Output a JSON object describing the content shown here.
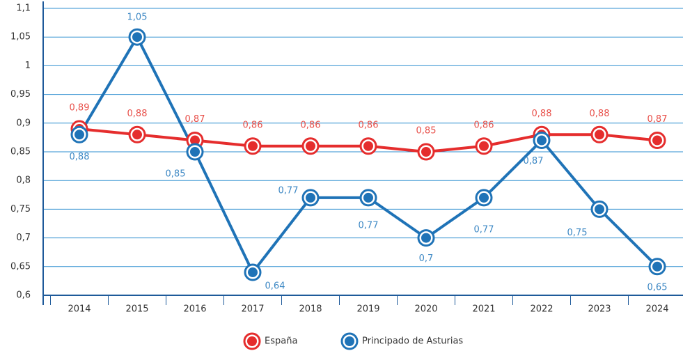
{
  "chart_data": {
    "type": "line",
    "categories": [
      "2014",
      "2015",
      "2016",
      "2017",
      "2018",
      "2019",
      "2020",
      "2021",
      "2022",
      "2023",
      "2024"
    ],
    "series": [
      {
        "name": "España",
        "color": "#e52d2d",
        "values": [
          0.89,
          0.88,
          0.87,
          0.86,
          0.86,
          0.86,
          0.85,
          0.86,
          0.88,
          0.88,
          0.87
        ],
        "value_labels": [
          "0,89",
          "0,88",
          "0,87",
          "0,86",
          "0,86",
          "0,86",
          "0,85",
          "0,86",
          "0,88",
          "0,88",
          "0,87"
        ]
      },
      {
        "name": "Principado de Asturias",
        "color": "#1f73b7",
        "values": [
          0.88,
          1.05,
          0.85,
          0.64,
          0.77,
          0.77,
          0.7,
          0.77,
          0.87,
          0.75,
          0.65
        ],
        "value_labels": [
          "0,88",
          "1,05",
          "0,85",
          "0,64",
          "0,77",
          "0,77",
          "0,7",
          "0,77",
          "0,87",
          "0,75",
          "0,65"
        ]
      }
    ],
    "ylim": [
      0.6,
      1.1
    ],
    "yticks": [
      {
        "value": 0.6,
        "label": "0,6"
      },
      {
        "value": 0.65,
        "label": "0,65"
      },
      {
        "value": 0.7,
        "label": "0,7"
      },
      {
        "value": 0.75,
        "label": "0,75"
      },
      {
        "value": 0.8,
        "label": "0,8"
      },
      {
        "value": 0.85,
        "label": "0,85"
      },
      {
        "value": 0.9,
        "label": "0,9"
      },
      {
        "value": 0.95,
        "label": "0,95"
      },
      1,
      {
        "value": 1.05,
        "label": "1,05"
      },
      {
        "value": 1.1,
        "label": "1,1"
      }
    ],
    "grid": true,
    "legend": "bottom"
  }
}
